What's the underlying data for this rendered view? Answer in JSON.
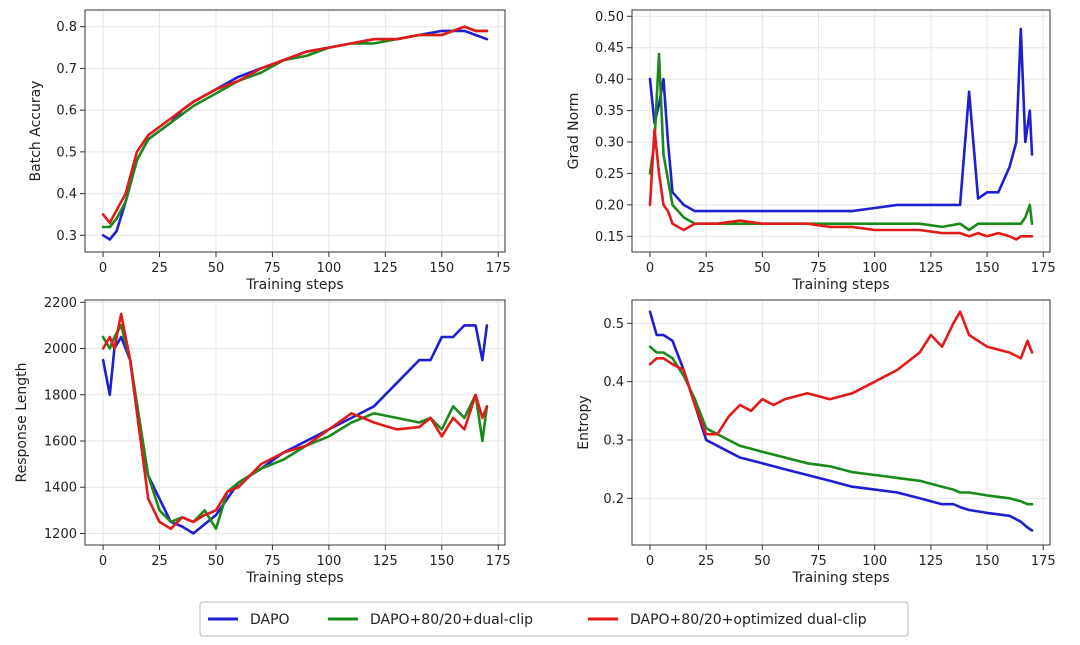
{
  "chart_data": [
    {
      "id": "batch-accuracy",
      "type": "line",
      "xlabel": "Training steps",
      "ylabel": "Batch Accuray",
      "xlim": [
        -8,
        178
      ],
      "ylim": [
        0.26,
        0.84
      ],
      "xticks": [
        0,
        25,
        50,
        75,
        100,
        125,
        150,
        175
      ],
      "yticks": [
        0.3,
        0.4,
        0.5,
        0.6,
        0.7,
        0.8
      ],
      "ytick_labels": [
        "0.3",
        "0.4",
        "0.5",
        "0.6",
        "0.7",
        "0.8"
      ],
      "grid": true,
      "x": [
        0,
        3,
        6,
        10,
        15,
        20,
        25,
        30,
        35,
        40,
        50,
        60,
        70,
        80,
        90,
        100,
        110,
        120,
        130,
        140,
        150,
        155,
        160,
        165,
        170
      ],
      "series": [
        {
          "key": "dapo",
          "values": [
            0.3,
            0.29,
            0.31,
            0.38,
            0.48,
            0.53,
            0.55,
            0.57,
            0.6,
            0.62,
            0.65,
            0.68,
            0.7,
            0.72,
            0.74,
            0.75,
            0.76,
            0.77,
            0.77,
            0.78,
            0.79,
            0.79,
            0.79,
            0.78,
            0.77
          ]
        },
        {
          "key": "dualclip",
          "values": [
            0.32,
            0.32,
            0.34,
            0.38,
            0.48,
            0.53,
            0.55,
            0.57,
            0.59,
            0.61,
            0.64,
            0.67,
            0.69,
            0.72,
            0.73,
            0.75,
            0.76,
            0.76,
            0.77,
            0.78,
            0.78,
            0.79,
            0.8,
            0.79,
            0.79
          ]
        },
        {
          "key": "optimized",
          "values": [
            0.35,
            0.33,
            0.36,
            0.4,
            0.5,
            0.54,
            0.56,
            0.58,
            0.6,
            0.62,
            0.65,
            0.67,
            0.7,
            0.72,
            0.74,
            0.75,
            0.76,
            0.77,
            0.77,
            0.78,
            0.78,
            0.79,
            0.8,
            0.79,
            0.79
          ]
        }
      ]
    },
    {
      "id": "grad-norm",
      "type": "line",
      "xlabel": "Training steps",
      "ylabel": "Grad Norm",
      "xlim": [
        -8,
        178
      ],
      "ylim": [
        0.125,
        0.51
      ],
      "xticks": [
        0,
        25,
        50,
        75,
        100,
        125,
        150,
        175
      ],
      "yticks": [
        0.15,
        0.2,
        0.25,
        0.3,
        0.35,
        0.4,
        0.45,
        0.5
      ],
      "ytick_labels": [
        "0.15",
        "0.20",
        "0.25",
        "0.30",
        "0.35",
        "0.40",
        "0.45",
        "0.50"
      ],
      "grid": true,
      "x": [
        0,
        2,
        4,
        6,
        8,
        10,
        15,
        20,
        30,
        40,
        50,
        60,
        70,
        80,
        90,
        100,
        110,
        120,
        130,
        138,
        142,
        146,
        150,
        155,
        160,
        163,
        165,
        167,
        169,
        170
      ],
      "series": [
        {
          "key": "dapo",
          "values": [
            0.4,
            0.33,
            0.36,
            0.4,
            0.3,
            0.22,
            0.2,
            0.19,
            0.19,
            0.19,
            0.19,
            0.19,
            0.19,
            0.19,
            0.19,
            0.195,
            0.2,
            0.2,
            0.2,
            0.2,
            0.38,
            0.21,
            0.22,
            0.22,
            0.26,
            0.3,
            0.48,
            0.3,
            0.35,
            0.28
          ]
        },
        {
          "key": "dualclip",
          "values": [
            0.25,
            0.3,
            0.44,
            0.28,
            0.24,
            0.2,
            0.18,
            0.17,
            0.17,
            0.17,
            0.17,
            0.17,
            0.17,
            0.17,
            0.17,
            0.17,
            0.17,
            0.17,
            0.165,
            0.17,
            0.16,
            0.17,
            0.17,
            0.17,
            0.17,
            0.17,
            0.17,
            0.18,
            0.2,
            0.17
          ]
        },
        {
          "key": "optimized",
          "values": [
            0.2,
            0.32,
            0.25,
            0.2,
            0.19,
            0.17,
            0.16,
            0.17,
            0.17,
            0.175,
            0.17,
            0.17,
            0.17,
            0.165,
            0.165,
            0.16,
            0.16,
            0.16,
            0.155,
            0.155,
            0.15,
            0.155,
            0.15,
            0.155,
            0.15,
            0.145,
            0.15,
            0.15,
            0.15,
            0.15
          ]
        }
      ]
    },
    {
      "id": "response-length",
      "type": "line",
      "xlabel": "Training steps",
      "ylabel": "Response Length",
      "xlim": [
        -8,
        178
      ],
      "ylim": [
        1150,
        2210
      ],
      "xticks": [
        0,
        25,
        50,
        75,
        100,
        125,
        150,
        175
      ],
      "yticks": [
        1200,
        1400,
        1600,
        1800,
        2000,
        2200
      ],
      "ytick_labels": [
        "1200",
        "1400",
        "1600",
        "1800",
        "2000",
        "2200"
      ],
      "grid": true,
      "x": [
        0,
        3,
        5,
        8,
        12,
        16,
        20,
        25,
        30,
        35,
        40,
        45,
        50,
        55,
        60,
        70,
        80,
        90,
        100,
        110,
        120,
        130,
        140,
        145,
        150,
        155,
        160,
        165,
        168,
        170
      ],
      "series": [
        {
          "key": "dapo",
          "values": [
            1950,
            1800,
            2000,
            2050,
            1950,
            1650,
            1450,
            1350,
            1250,
            1230,
            1200,
            1240,
            1280,
            1350,
            1420,
            1480,
            1550,
            1600,
            1650,
            1700,
            1750,
            1850,
            1950,
            1950,
            2050,
            2050,
            2100,
            2100,
            1950,
            2100
          ]
        },
        {
          "key": "dualclip",
          "values": [
            2050,
            2000,
            2050,
            2100,
            1950,
            1700,
            1450,
            1300,
            1250,
            1270,
            1250,
            1300,
            1220,
            1380,
            1420,
            1480,
            1520,
            1580,
            1620,
            1680,
            1720,
            1700,
            1680,
            1700,
            1650,
            1750,
            1700,
            1800,
            1600,
            1750
          ]
        },
        {
          "key": "optimized",
          "values": [
            2000,
            2050,
            2000,
            2150,
            1950,
            1650,
            1350,
            1250,
            1220,
            1270,
            1250,
            1280,
            1300,
            1380,
            1400,
            1500,
            1550,
            1580,
            1650,
            1720,
            1680,
            1650,
            1660,
            1700,
            1620,
            1700,
            1650,
            1800,
            1700,
            1750
          ]
        }
      ]
    },
    {
      "id": "entropy",
      "type": "line",
      "xlabel": "Training steps",
      "ylabel": "Entropy",
      "xlim": [
        -8,
        178
      ],
      "ylim": [
        0.12,
        0.54
      ],
      "xticks": [
        0,
        25,
        50,
        75,
        100,
        125,
        150,
        175
      ],
      "yticks": [
        0.2,
        0.3,
        0.4,
        0.5
      ],
      "ytick_labels": [
        "0.2",
        "0.3",
        "0.4",
        "0.5"
      ],
      "grid": true,
      "x": [
        0,
        3,
        6,
        10,
        15,
        20,
        25,
        30,
        35,
        40,
        45,
        50,
        55,
        60,
        70,
        80,
        90,
        100,
        110,
        120,
        125,
        130,
        135,
        138,
        142,
        150,
        160,
        165,
        168,
        170
      ],
      "series": [
        {
          "key": "dapo",
          "values": [
            0.52,
            0.48,
            0.48,
            0.47,
            0.42,
            0.36,
            0.3,
            0.29,
            0.28,
            0.27,
            0.265,
            0.26,
            0.255,
            0.25,
            0.24,
            0.23,
            0.22,
            0.215,
            0.21,
            0.2,
            0.195,
            0.19,
            0.19,
            0.185,
            0.18,
            0.175,
            0.17,
            0.16,
            0.15,
            0.145
          ]
        },
        {
          "key": "dualclip",
          "values": [
            0.46,
            0.45,
            0.45,
            0.44,
            0.41,
            0.37,
            0.32,
            0.31,
            0.3,
            0.29,
            0.285,
            0.28,
            0.275,
            0.27,
            0.26,
            0.255,
            0.245,
            0.24,
            0.235,
            0.23,
            0.225,
            0.22,
            0.215,
            0.21,
            0.21,
            0.205,
            0.2,
            0.195,
            0.19,
            0.19
          ]
        },
        {
          "key": "optimized",
          "values": [
            0.43,
            0.44,
            0.44,
            0.43,
            0.42,
            0.36,
            0.31,
            0.31,
            0.34,
            0.36,
            0.35,
            0.37,
            0.36,
            0.37,
            0.38,
            0.37,
            0.38,
            0.4,
            0.42,
            0.45,
            0.48,
            0.46,
            0.5,
            0.52,
            0.48,
            0.46,
            0.45,
            0.44,
            0.47,
            0.45
          ]
        }
      ]
    }
  ],
  "legend": {
    "placement": "bottom-center",
    "items": [
      {
        "key": "dapo",
        "label": "DAPO",
        "color": "#1f1fd0"
      },
      {
        "key": "dualclip",
        "label": "DAPO+80/20+dual-clip",
        "color": "#1a8a1a"
      },
      {
        "key": "optimized",
        "label": "DAPO+80/20+optimized dual-clip",
        "color": "#e31a1a"
      }
    ]
  }
}
